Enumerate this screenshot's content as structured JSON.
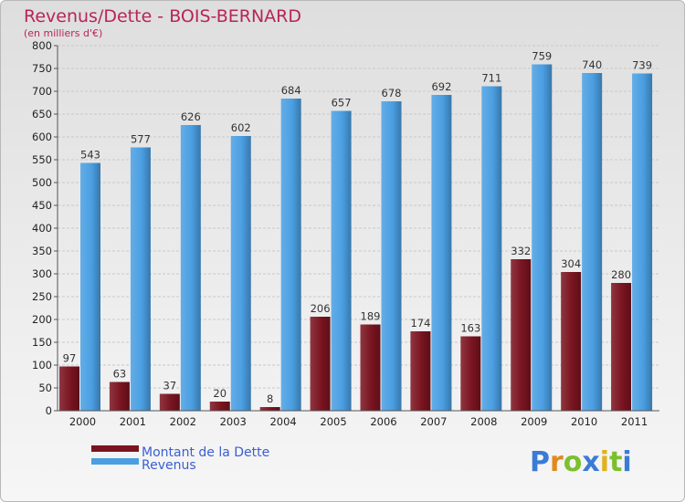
{
  "chart_data": {
    "type": "bar",
    "title": "Revenus/Dette - BOIS-BERNARD",
    "subtitle": "(en milliers d'€)",
    "xlabel": "",
    "ylabel": "",
    "ylim": [
      0,
      800
    ],
    "ytick_step": 50,
    "grid": true,
    "legend_position": "bottom-left",
    "categories": [
      "2000",
      "2001",
      "2002",
      "2003",
      "2004",
      "2005",
      "2006",
      "2007",
      "2008",
      "2009",
      "2010",
      "2011"
    ],
    "series": [
      {
        "name": "Montant de la Dette",
        "color": "#7a1420",
        "values": [
          97,
          63,
          37,
          20,
          8,
          206,
          189,
          174,
          163,
          332,
          304,
          280
        ]
      },
      {
        "name": "Revenus",
        "color": "#4a9fe2",
        "values": [
          543,
          577,
          626,
          602,
          684,
          657,
          678,
          692,
          711,
          759,
          740,
          739
        ]
      }
    ]
  },
  "logo": {
    "letters": [
      "P",
      "r",
      "o",
      "x",
      "i",
      "t",
      "i"
    ],
    "colors": [
      "#3a7bd5",
      "#e08a1e",
      "#7cbf2f",
      "#3a7bd5",
      "#e0b21e",
      "#7cbf2f",
      "#3a7bd5"
    ]
  }
}
